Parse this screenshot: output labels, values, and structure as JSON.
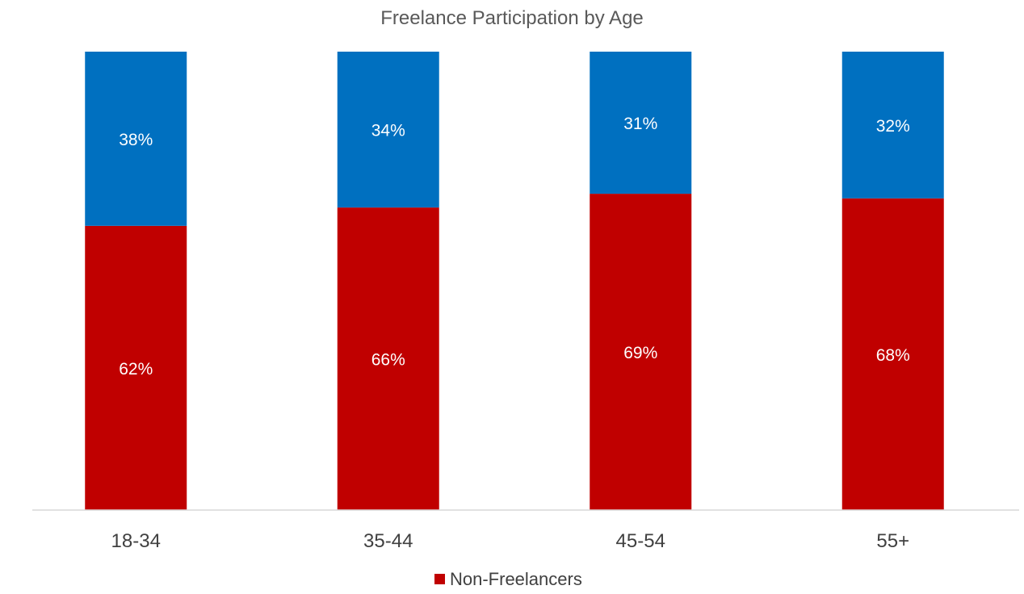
{
  "chart_data": {
    "type": "bar",
    "stacked": true,
    "percent_stacked": true,
    "title": "Freelance Participation by Age",
    "categories": [
      "18-34",
      "35-44",
      "45-54",
      "55+"
    ],
    "series": [
      {
        "name": "Non-Freelancers",
        "values": [
          62,
          66,
          69,
          68
        ],
        "labels": [
          "62%",
          "66%",
          "69%",
          "68%"
        ],
        "color": "#c00000"
      },
      {
        "values": [
          38,
          34,
          31,
          32
        ],
        "labels": [
          "38%",
          "34%",
          "31%",
          "32%"
        ],
        "color": "#0070c0"
      }
    ],
    "ylim": [
      0,
      100
    ],
    "grid": false,
    "legend": {
      "position": "bottom",
      "entries": [
        "Non-Freelancers"
      ]
    },
    "colors": {
      "axis_line": "#d9d9d9",
      "title_text": "#595959",
      "tick_text": "#404040",
      "data_label_text": "#ffffff"
    }
  }
}
